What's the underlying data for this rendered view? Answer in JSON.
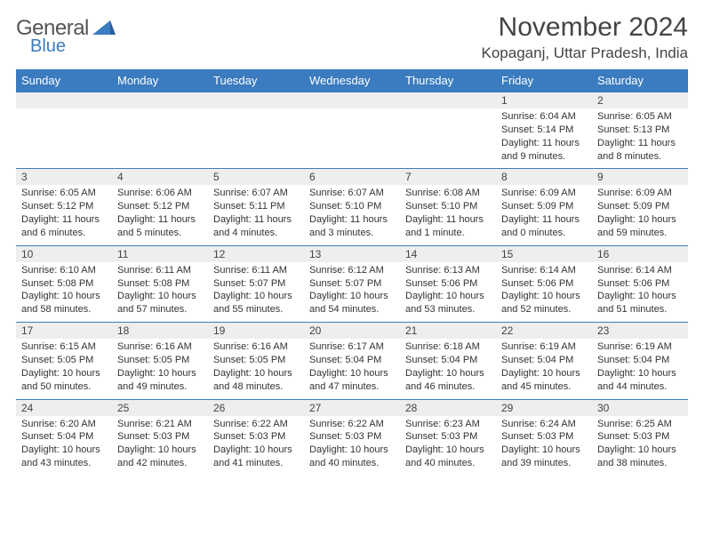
{
  "brand": {
    "general": "General",
    "blue": "Blue",
    "triangle_color": "#3b7bbf"
  },
  "header": {
    "month_title": "November 2024",
    "location": "Kopaganj, Uttar Pradesh, India"
  },
  "colors": {
    "header_bg": "#3b7bbf",
    "header_text": "#ffffff",
    "daynum_bg": "#eeeeee",
    "border": "#3b7bbf",
    "text": "#333333"
  },
  "weekdays": [
    "Sunday",
    "Monday",
    "Tuesday",
    "Wednesday",
    "Thursday",
    "Friday",
    "Saturday"
  ],
  "weeks": [
    [
      null,
      null,
      null,
      null,
      null,
      {
        "n": "1",
        "rise": "Sunrise: 6:04 AM",
        "set": "Sunset: 5:14 PM",
        "day": "Daylight: 11 hours and 9 minutes."
      },
      {
        "n": "2",
        "rise": "Sunrise: 6:05 AM",
        "set": "Sunset: 5:13 PM",
        "day": "Daylight: 11 hours and 8 minutes."
      }
    ],
    [
      {
        "n": "3",
        "rise": "Sunrise: 6:05 AM",
        "set": "Sunset: 5:12 PM",
        "day": "Daylight: 11 hours and 6 minutes."
      },
      {
        "n": "4",
        "rise": "Sunrise: 6:06 AM",
        "set": "Sunset: 5:12 PM",
        "day": "Daylight: 11 hours and 5 minutes."
      },
      {
        "n": "5",
        "rise": "Sunrise: 6:07 AM",
        "set": "Sunset: 5:11 PM",
        "day": "Daylight: 11 hours and 4 minutes."
      },
      {
        "n": "6",
        "rise": "Sunrise: 6:07 AM",
        "set": "Sunset: 5:10 PM",
        "day": "Daylight: 11 hours and 3 minutes."
      },
      {
        "n": "7",
        "rise": "Sunrise: 6:08 AM",
        "set": "Sunset: 5:10 PM",
        "day": "Daylight: 11 hours and 1 minute."
      },
      {
        "n": "8",
        "rise": "Sunrise: 6:09 AM",
        "set": "Sunset: 5:09 PM",
        "day": "Daylight: 11 hours and 0 minutes."
      },
      {
        "n": "9",
        "rise": "Sunrise: 6:09 AM",
        "set": "Sunset: 5:09 PM",
        "day": "Daylight: 10 hours and 59 minutes."
      }
    ],
    [
      {
        "n": "10",
        "rise": "Sunrise: 6:10 AM",
        "set": "Sunset: 5:08 PM",
        "day": "Daylight: 10 hours and 58 minutes."
      },
      {
        "n": "11",
        "rise": "Sunrise: 6:11 AM",
        "set": "Sunset: 5:08 PM",
        "day": "Daylight: 10 hours and 57 minutes."
      },
      {
        "n": "12",
        "rise": "Sunrise: 6:11 AM",
        "set": "Sunset: 5:07 PM",
        "day": "Daylight: 10 hours and 55 minutes."
      },
      {
        "n": "13",
        "rise": "Sunrise: 6:12 AM",
        "set": "Sunset: 5:07 PM",
        "day": "Daylight: 10 hours and 54 minutes."
      },
      {
        "n": "14",
        "rise": "Sunrise: 6:13 AM",
        "set": "Sunset: 5:06 PM",
        "day": "Daylight: 10 hours and 53 minutes."
      },
      {
        "n": "15",
        "rise": "Sunrise: 6:14 AM",
        "set": "Sunset: 5:06 PM",
        "day": "Daylight: 10 hours and 52 minutes."
      },
      {
        "n": "16",
        "rise": "Sunrise: 6:14 AM",
        "set": "Sunset: 5:06 PM",
        "day": "Daylight: 10 hours and 51 minutes."
      }
    ],
    [
      {
        "n": "17",
        "rise": "Sunrise: 6:15 AM",
        "set": "Sunset: 5:05 PM",
        "day": "Daylight: 10 hours and 50 minutes."
      },
      {
        "n": "18",
        "rise": "Sunrise: 6:16 AM",
        "set": "Sunset: 5:05 PM",
        "day": "Daylight: 10 hours and 49 minutes."
      },
      {
        "n": "19",
        "rise": "Sunrise: 6:16 AM",
        "set": "Sunset: 5:05 PM",
        "day": "Daylight: 10 hours and 48 minutes."
      },
      {
        "n": "20",
        "rise": "Sunrise: 6:17 AM",
        "set": "Sunset: 5:04 PM",
        "day": "Daylight: 10 hours and 47 minutes."
      },
      {
        "n": "21",
        "rise": "Sunrise: 6:18 AM",
        "set": "Sunset: 5:04 PM",
        "day": "Daylight: 10 hours and 46 minutes."
      },
      {
        "n": "22",
        "rise": "Sunrise: 6:19 AM",
        "set": "Sunset: 5:04 PM",
        "day": "Daylight: 10 hours and 45 minutes."
      },
      {
        "n": "23",
        "rise": "Sunrise: 6:19 AM",
        "set": "Sunset: 5:04 PM",
        "day": "Daylight: 10 hours and 44 minutes."
      }
    ],
    [
      {
        "n": "24",
        "rise": "Sunrise: 6:20 AM",
        "set": "Sunset: 5:04 PM",
        "day": "Daylight: 10 hours and 43 minutes."
      },
      {
        "n": "25",
        "rise": "Sunrise: 6:21 AM",
        "set": "Sunset: 5:03 PM",
        "day": "Daylight: 10 hours and 42 minutes."
      },
      {
        "n": "26",
        "rise": "Sunrise: 6:22 AM",
        "set": "Sunset: 5:03 PM",
        "day": "Daylight: 10 hours and 41 minutes."
      },
      {
        "n": "27",
        "rise": "Sunrise: 6:22 AM",
        "set": "Sunset: 5:03 PM",
        "day": "Daylight: 10 hours and 40 minutes."
      },
      {
        "n": "28",
        "rise": "Sunrise: 6:23 AM",
        "set": "Sunset: 5:03 PM",
        "day": "Daylight: 10 hours and 40 minutes."
      },
      {
        "n": "29",
        "rise": "Sunrise: 6:24 AM",
        "set": "Sunset: 5:03 PM",
        "day": "Daylight: 10 hours and 39 minutes."
      },
      {
        "n": "30",
        "rise": "Sunrise: 6:25 AM",
        "set": "Sunset: 5:03 PM",
        "day": "Daylight: 10 hours and 38 minutes."
      }
    ]
  ]
}
